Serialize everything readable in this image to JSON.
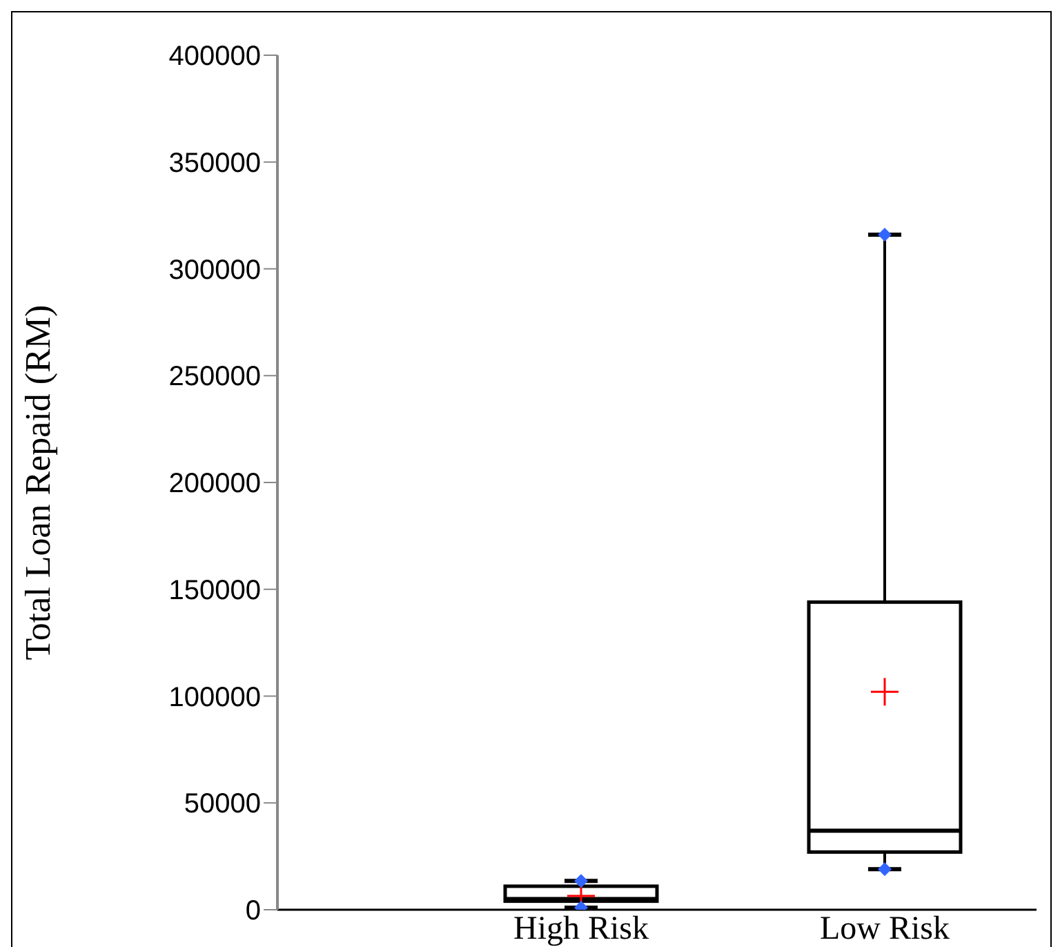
{
  "chart_data": {
    "type": "box",
    "ylabel": "Total Loan Repaid (RM)",
    "categories": [
      "High Risk",
      "Low Risk"
    ],
    "boxes": [
      {
        "low": 1000,
        "q1": 4000,
        "median": 5000,
        "q3": 11000,
        "high": 13500,
        "mean": 6500
      },
      {
        "low": 19000,
        "q1": 27000,
        "median": 37000,
        "q3": 144000,
        "high": 316000,
        "mean": 102000
      }
    ],
    "series": [
      {
        "type": "scatter",
        "color": "#3366ff",
        "marker": "diamond",
        "x": [
          "High Risk",
          "High Risk",
          "Low Risk",
          "Low Risk"
        ],
        "values": [
          13500,
          1000,
          316000,
          19000
        ]
      }
    ],
    "ylim": [
      0,
      400000
    ],
    "yticks": [
      0,
      50000,
      100000,
      150000,
      200000,
      250000,
      300000,
      350000,
      400000
    ],
    "grid": false,
    "legend": false
  }
}
